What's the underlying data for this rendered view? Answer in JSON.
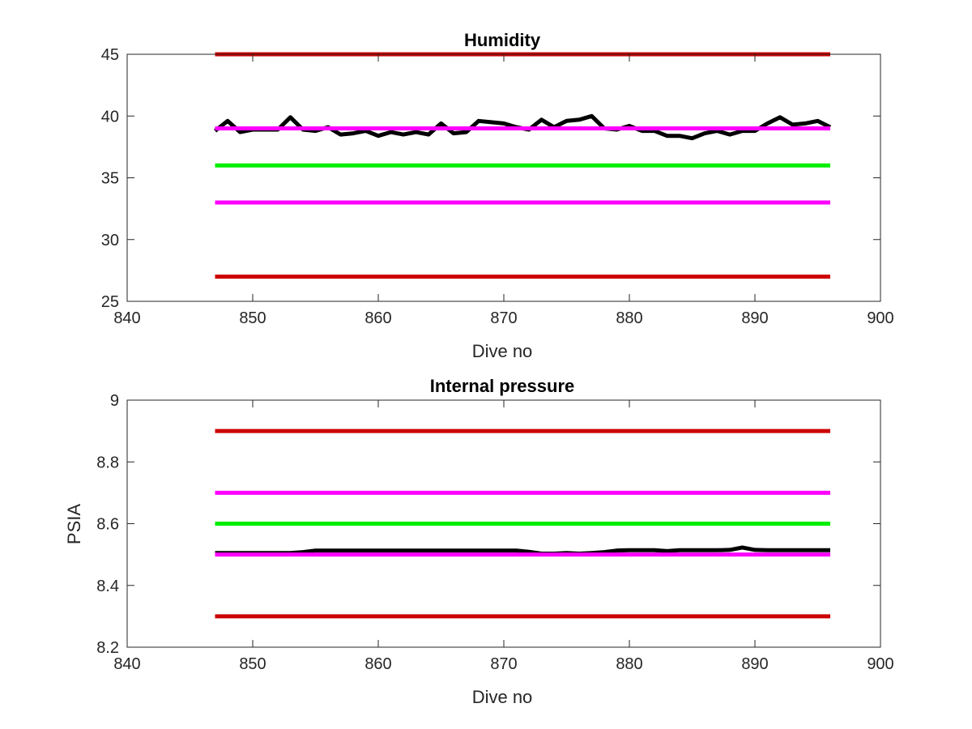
{
  "chart_data": [
    {
      "type": "line",
      "title": "Humidity",
      "xlabel": "Dive no",
      "ylabel": "",
      "xlim": [
        840,
        900
      ],
      "ylim": [
        25,
        45
      ],
      "xticks": [
        840,
        850,
        860,
        870,
        880,
        890,
        900
      ],
      "yticks": [
        25,
        30,
        35,
        40,
        45
      ],
      "grid": false,
      "series": [
        {
          "color": "#000000",
          "x": [
            847,
            848,
            849,
            850,
            851,
            852,
            853,
            854,
            855,
            856,
            857,
            858,
            859,
            860,
            861,
            862,
            863,
            864,
            865,
            866,
            867,
            868,
            869,
            870,
            871,
            872,
            873,
            874,
            875,
            876,
            877,
            878,
            879,
            880,
            881,
            882,
            883,
            884,
            885,
            886,
            887,
            888,
            889,
            890,
            891,
            892,
            893,
            894,
            895,
            896
          ],
          "y": [
            38.8,
            39.6,
            38.7,
            38.9,
            38.9,
            38.9,
            39.9,
            38.9,
            38.8,
            39.1,
            38.5,
            38.6,
            38.8,
            38.4,
            38.7,
            38.5,
            38.7,
            38.5,
            39.4,
            38.6,
            38.7,
            39.6,
            39.5,
            39.4,
            39.1,
            38.9,
            39.7,
            39.1,
            39.6,
            39.7,
            40.0,
            39.0,
            38.9,
            39.2,
            38.8,
            38.8,
            38.4,
            38.4,
            38.2,
            38.6,
            38.8,
            38.5,
            38.8,
            38.8,
            39.4,
            39.9,
            39.3,
            39.4,
            39.6,
            39.1
          ]
        },
        {
          "color": "#cc0000",
          "x": [
            847,
            896
          ],
          "y": [
            45,
            45
          ]
        },
        {
          "color": "#ff00ff",
          "x": [
            847,
            896
          ],
          "y": [
            39,
            39
          ]
        },
        {
          "color": "#00ee00",
          "x": [
            847,
            896
          ],
          "y": [
            36,
            36
          ]
        },
        {
          "color": "#ff00ff",
          "x": [
            847,
            896
          ],
          "y": [
            33,
            33
          ]
        },
        {
          "color": "#cc0000",
          "x": [
            847,
            896
          ],
          "y": [
            27,
            27
          ]
        }
      ]
    },
    {
      "type": "line",
      "title": "Internal pressure",
      "xlabel": "Dive no",
      "ylabel": "PSIA",
      "xlim": [
        840,
        900
      ],
      "ylim": [
        8.2,
        9
      ],
      "xticks": [
        840,
        850,
        860,
        870,
        880,
        890,
        900
      ],
      "yticks": [
        8.2,
        8.4,
        8.6,
        8.8,
        9
      ],
      "grid": false,
      "series": [
        {
          "color": "#000000",
          "x": [
            847,
            848,
            849,
            850,
            851,
            852,
            853,
            854,
            855,
            856,
            857,
            858,
            859,
            860,
            861,
            862,
            863,
            864,
            865,
            866,
            867,
            868,
            869,
            870,
            871,
            872,
            873,
            874,
            875,
            876,
            877,
            878,
            879,
            880,
            881,
            882,
            883,
            884,
            885,
            886,
            887,
            888,
            889,
            890,
            891,
            892,
            893,
            894,
            895,
            896
          ],
          "y": [
            8.505,
            8.505,
            8.505,
            8.505,
            8.505,
            8.505,
            8.505,
            8.508,
            8.513,
            8.513,
            8.513,
            8.513,
            8.513,
            8.513,
            8.513,
            8.513,
            8.513,
            8.513,
            8.513,
            8.513,
            8.513,
            8.513,
            8.513,
            8.513,
            8.513,
            8.509,
            8.503,
            8.503,
            8.505,
            8.503,
            8.505,
            8.508,
            8.513,
            8.514,
            8.514,
            8.514,
            8.511,
            8.514,
            8.514,
            8.514,
            8.514,
            8.515,
            8.523,
            8.515,
            8.514,
            8.514,
            8.514,
            8.514,
            8.514,
            8.514
          ]
        },
        {
          "color": "#cc0000",
          "x": [
            847,
            896
          ],
          "y": [
            8.9,
            8.9
          ]
        },
        {
          "color": "#ff00ff",
          "x": [
            847,
            896
          ],
          "y": [
            8.7,
            8.7
          ]
        },
        {
          "color": "#00ee00",
          "x": [
            847,
            896
          ],
          "y": [
            8.6,
            8.6
          ]
        },
        {
          "color": "#ff00ff",
          "x": [
            847,
            896
          ],
          "y": [
            8.5,
            8.5
          ]
        },
        {
          "color": "#cc0000",
          "x": [
            847,
            896
          ],
          "y": [
            8.3,
            8.3
          ]
        }
      ]
    }
  ]
}
